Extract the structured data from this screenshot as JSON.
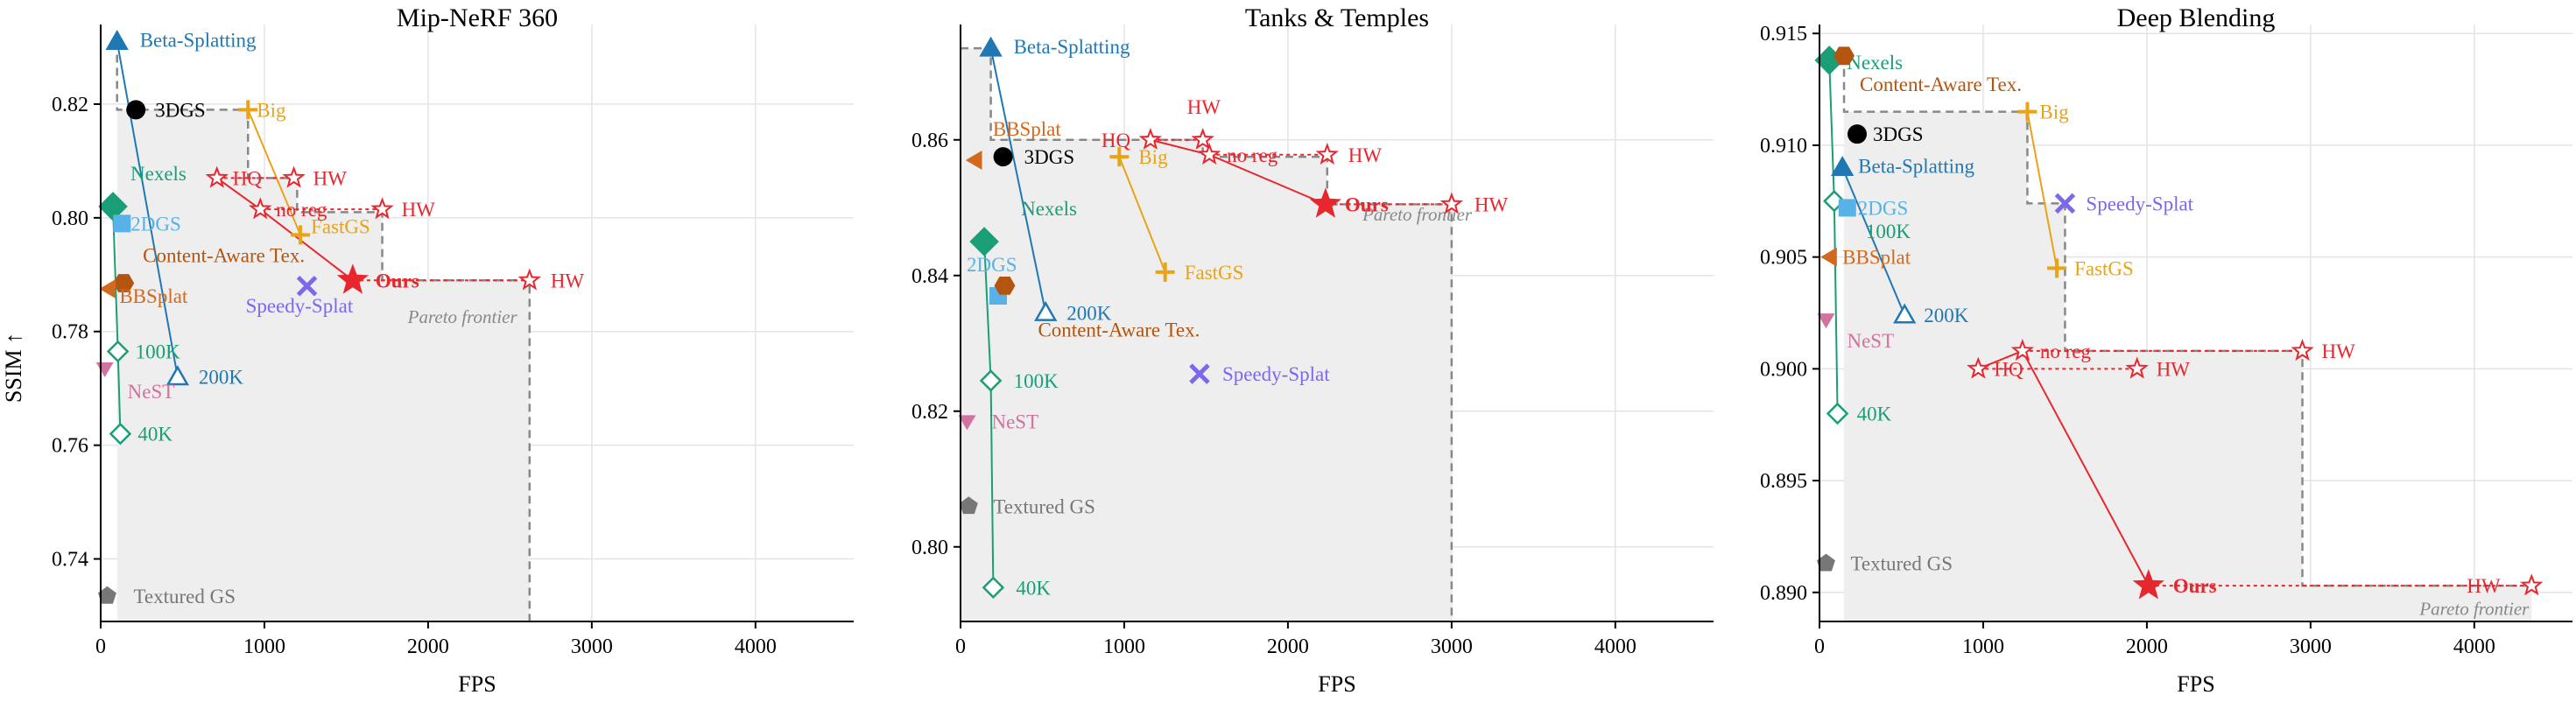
{
  "figure": {
    "ylabel": "SSIM ↑"
  },
  "colors": {
    "ours": "#e8262e",
    "hw": "#e8262e",
    "beta": "#1f78b4",
    "three_dgs": "#000000",
    "big": "#e8a317",
    "fastgs": "#e8a317",
    "nexels": "#1a9e77",
    "twodgs": "#58b2e8",
    "cat": "#b3550e",
    "bbsplat": "#d2691e",
    "speedy": "#7b68ee",
    "nest": "#d2729e",
    "textured": "#777777",
    "frontier": "#888888",
    "shade": "#eeeeee"
  },
  "chart_data": [
    {
      "type": "scatter",
      "title": "Mip-NeRF 360",
      "xlabel": "FPS",
      "ylabel": "SSIM ↑",
      "xlim": [
        0,
        4600
      ],
      "ylim": [
        0.729,
        0.834
      ],
      "xticks": [
        "0",
        "1000",
        "2000",
        "3000",
        "4000"
      ],
      "yticks": [
        "0.74",
        "0.76",
        "0.78",
        "0.80",
        "0.82"
      ],
      "ytick_values": [
        0.74,
        0.76,
        0.78,
        0.8,
        0.82
      ],
      "grid": true,
      "frontier_label": "Pareto frontier",
      "frontier": [
        [
          100,
          0.831
        ],
        [
          100,
          0.819
        ],
        [
          900,
          0.819
        ],
        [
          900,
          0.807
        ],
        [
          1200,
          0.807
        ],
        [
          1200,
          0.801
        ],
        [
          1720,
          0.801
        ],
        [
          1720,
          0.789
        ],
        [
          2620,
          0.789
        ],
        [
          2620,
          0.729
        ]
      ],
      "series": [
        {
          "name": "Beta-Splatting",
          "marker": "tri-up",
          "color": "beta",
          "points": [
            [
              100,
              0.831
            ],
            [
              470,
              0.772
            ]
          ],
          "pt_labels": [
            "Beta-Splatting",
            "200K"
          ]
        },
        {
          "name": "3DGS",
          "marker": "circle",
          "color": "three_dgs",
          "points": [
            [
              215,
              0.819
            ]
          ],
          "pt_labels": [
            "3DGS"
          ]
        },
        {
          "name": "Big",
          "marker": "plus",
          "color": "big",
          "points": [
            [
              900,
              0.819
            ],
            [
              1220,
              0.797
            ]
          ],
          "pt_labels": [
            "Big",
            "FastGS"
          ]
        },
        {
          "name": "HQ",
          "marker": "star-open",
          "color": "hw",
          "points": [
            [
              710,
              0.807
            ],
            [
              1180,
              0.807
            ]
          ],
          "pt_labels": [
            "HQ",
            "HW"
          ]
        },
        {
          "name": "no reg",
          "marker": "star-open",
          "color": "hw",
          "points": [
            [
              975,
              0.8015
            ],
            [
              1720,
              0.8015
            ]
          ],
          "pt_labels": [
            "no reg",
            "HW"
          ]
        },
        {
          "name": "Ours",
          "marker": "star",
          "color": "ours",
          "points": [
            [
              1540,
              0.789
            ],
            [
              2620,
              0.789
            ]
          ],
          "pt_labels": [
            "Ours",
            "HW"
          ]
        },
        {
          "name": "Nexels",
          "marker": "diamond",
          "color": "nexels",
          "points": [
            [
              75,
              0.802
            ],
            [
              105,
              0.7765
            ],
            [
              120,
              0.762
            ]
          ],
          "pt_labels": [
            "Nexels",
            "100K",
            "40K"
          ]
        },
        {
          "name": "2DGS",
          "marker": "square",
          "color": "twodgs",
          "points": [
            [
              130,
              0.799
            ]
          ],
          "pt_labels": [
            "2DGS"
          ]
        },
        {
          "name": "Content-Aware Tex.",
          "marker": "hexagon",
          "color": "cat",
          "points": [
            [
              140,
              0.7885
            ]
          ],
          "pt_labels": [
            "Content-Aware Tex."
          ]
        },
        {
          "name": "BBSplat",
          "marker": "tri-left",
          "color": "bbsplat",
          "points": [
            [
              50,
              0.7875
            ]
          ],
          "pt_labels": [
            "BBSplat"
          ]
        },
        {
          "name": "Speedy-Splat",
          "marker": "x",
          "color": "speedy",
          "points": [
            [
              1260,
              0.788
            ]
          ],
          "pt_labels": [
            "Speedy-Splat"
          ]
        },
        {
          "name": "NeST",
          "marker": "tri-down",
          "color": "nest",
          "points": [
            [
              25,
              0.7735
            ]
          ],
          "pt_labels": [
            "NeST"
          ]
        },
        {
          "name": "Textured GS",
          "marker": "pentagon",
          "color": "textured",
          "points": [
            [
              40,
              0.7335
            ]
          ],
          "pt_labels": [
            "Textured GS"
          ]
        }
      ]
    },
    {
      "type": "scatter",
      "title": "Tanks & Temples",
      "xlabel": "FPS",
      "ylabel": "",
      "xlim": [
        0,
        4600
      ],
      "ylim": [
        0.789,
        0.877
      ],
      "xticks": [
        "0",
        "1000",
        "2000",
        "3000",
        "4000"
      ],
      "yticks": [
        "0.80",
        "0.82",
        "0.84",
        "0.86"
      ],
      "ytick_values": [
        0.8,
        0.82,
        0.84,
        0.86
      ],
      "grid": true,
      "frontier_label": "Pareto frontier",
      "frontier": [
        [
          0,
          0.8735
        ],
        [
          185,
          0.8735
        ],
        [
          185,
          0.86
        ],
        [
          1480,
          0.86
        ],
        [
          1480,
          0.8575
        ],
        [
          2240,
          0.8575
        ],
        [
          2240,
          0.8505
        ],
        [
          3000,
          0.8505
        ],
        [
          3000,
          0.789
        ]
      ],
      "series": [
        {
          "name": "Beta-Splatting",
          "marker": "tri-up",
          "color": "beta",
          "points": [
            [
              185,
              0.8735
            ],
            [
              520,
              0.8345
            ]
          ],
          "pt_labels": [
            "Beta-Splatting",
            "200K"
          ]
        },
        {
          "name": "3DGS",
          "marker": "circle",
          "color": "three_dgs",
          "points": [
            [
              260,
              0.8575
            ]
          ],
          "pt_labels": [
            "3DGS"
          ]
        },
        {
          "name": "Big",
          "marker": "plus",
          "color": "big",
          "points": [
            [
              970,
              0.8575
            ],
            [
              1250,
              0.8405
            ]
          ],
          "pt_labels": [
            "Big",
            "FastGS"
          ]
        },
        {
          "name": "HQ",
          "marker": "star-open",
          "color": "hw",
          "points": [
            [
              1160,
              0.86
            ],
            [
              1480,
              0.86
            ]
          ],
          "pt_labels": [
            "HQ",
            "HW"
          ]
        },
        {
          "name": "no reg",
          "marker": "star-open",
          "color": "hw",
          "points": [
            [
              1520,
              0.8578
            ],
            [
              2240,
              0.8578
            ]
          ],
          "pt_labels": [
            "no reg",
            "HW"
          ]
        },
        {
          "name": "Ours",
          "marker": "star",
          "color": "ours",
          "points": [
            [
              2230,
              0.8505
            ],
            [
              3000,
              0.8505
            ]
          ],
          "pt_labels": [
            "Ours",
            "HW"
          ]
        },
        {
          "name": "BBSplat",
          "marker": "tri-left",
          "color": "bbsplat",
          "points": [
            [
              90,
              0.857
            ]
          ],
          "pt_labels": [
            "BBSplat"
          ]
        },
        {
          "name": "Nexels",
          "marker": "diamond",
          "color": "nexels",
          "points": [
            [
              145,
              0.845
            ],
            [
              185,
              0.8245
            ],
            [
              200,
              0.794
            ]
          ],
          "pt_labels": [
            "Nexels",
            "100K",
            "40K"
          ]
        },
        {
          "name": "2DGS",
          "marker": "square",
          "color": "twodgs",
          "points": [
            [
              230,
              0.837
            ]
          ],
          "pt_labels": [
            "2DGS"
          ]
        },
        {
          "name": "Content-Aware Tex.",
          "marker": "hexagon",
          "color": "cat",
          "points": [
            [
              270,
              0.8385
            ]
          ],
          "pt_labels": [
            "Content-Aware Tex."
          ]
        },
        {
          "name": "Speedy-Splat",
          "marker": "x",
          "color": "speedy",
          "points": [
            [
              1460,
              0.8255
            ]
          ],
          "pt_labels": [
            "Speedy-Splat"
          ]
        },
        {
          "name": "NeST",
          "marker": "tri-down",
          "color": "nest",
          "points": [
            [
              40,
              0.8185
            ]
          ],
          "pt_labels": [
            "NeST"
          ]
        },
        {
          "name": "Textured GS",
          "marker": "pentagon",
          "color": "textured",
          "points": [
            [
              50,
              0.806
            ]
          ],
          "pt_labels": [
            "Textured GS"
          ]
        }
      ]
    },
    {
      "type": "scatter",
      "title": "Deep Blending",
      "xlabel": "FPS",
      "ylabel": "",
      "xlim": [
        0,
        4600
      ],
      "ylim": [
        0.8887,
        0.9154
      ],
      "xticks": [
        "0",
        "1000",
        "2000",
        "3000",
        "4000"
      ],
      "yticks": [
        "0.890",
        "0.895",
        "0.900",
        "0.905",
        "0.910",
        "0.915"
      ],
      "ytick_values": [
        0.89,
        0.895,
        0.9,
        0.905,
        0.91,
        0.915
      ],
      "grid": true,
      "frontier_label": "Pareto frontier",
      "frontier": [
        [
          150,
          0.914
        ],
        [
          150,
          0.9115
        ],
        [
          1270,
          0.9115
        ],
        [
          1270,
          0.9074
        ],
        [
          1500,
          0.9074
        ],
        [
          1500,
          0.9008
        ],
        [
          2950,
          0.9008
        ],
        [
          2950,
          0.8903
        ],
        [
          4350,
          0.8903
        ]
      ],
      "series": [
        {
          "name": "Nexels",
          "marker": "diamond",
          "color": "nexels",
          "points": [
            [
              60,
              0.9138
            ],
            [
              90,
              0.9075
            ],
            [
              110,
              0.898
            ]
          ],
          "pt_labels": [
            "Nexels",
            "100K",
            "40K"
          ]
        },
        {
          "name": "Content-Aware Tex.",
          "marker": "hexagon",
          "color": "cat",
          "points": [
            [
              150,
              0.914
            ]
          ],
          "pt_labels": [
            "Content-Aware Tex."
          ]
        },
        {
          "name": "Big",
          "marker": "plus",
          "color": "big",
          "points": [
            [
              1270,
              0.9115
            ],
            [
              1450,
              0.9045
            ]
          ],
          "pt_labels": [
            "Big",
            "FastGS"
          ]
        },
        {
          "name": "3DGS",
          "marker": "circle",
          "color": "three_dgs",
          "points": [
            [
              230,
              0.9105
            ]
          ],
          "pt_labels": [
            "3DGS"
          ]
        },
        {
          "name": "Beta-Splatting",
          "marker": "tri-up",
          "color": "beta",
          "points": [
            [
              140,
              0.909
            ],
            [
              520,
              0.9024
            ]
          ],
          "pt_labels": [
            "Beta-Splatting",
            "200K"
          ]
        },
        {
          "name": "Speedy-Splat",
          "marker": "x",
          "color": "speedy",
          "points": [
            [
              1500,
              0.9074
            ]
          ],
          "pt_labels": [
            "Speedy-Splat"
          ]
        },
        {
          "name": "2DGS",
          "marker": "square",
          "color": "twodgs",
          "points": [
            [
              170,
              0.9072
            ]
          ],
          "pt_labels": [
            "2DGS"
          ]
        },
        {
          "name": "BBSplat",
          "marker": "tri-left",
          "color": "bbsplat",
          "points": [
            [
              65,
              0.905
            ]
          ],
          "pt_labels": [
            "BBSplat"
          ]
        },
        {
          "name": "NeST",
          "marker": "tri-down",
          "color": "nest",
          "points": [
            [
              40,
              0.9022
            ]
          ],
          "pt_labels": [
            "NeST"
          ]
        },
        {
          "name": "no reg",
          "marker": "star-open",
          "color": "hw",
          "points": [
            [
              1240,
              0.9008
            ],
            [
              2950,
              0.9008
            ]
          ],
          "pt_labels": [
            "no reg",
            "HW"
          ]
        },
        {
          "name": "HQ",
          "marker": "star-open",
          "color": "hw",
          "points": [
            [
              970,
              0.9
            ],
            [
              1940,
              0.9
            ]
          ],
          "pt_labels": [
            "HQ",
            "HW"
          ]
        },
        {
          "name": "Ours",
          "marker": "star",
          "color": "ours",
          "points": [
            [
              2010,
              0.8903
            ],
            [
              4350,
              0.8903
            ]
          ],
          "pt_labels": [
            "Ours",
            "HW"
          ]
        },
        {
          "name": "Textured GS",
          "marker": "pentagon",
          "color": "textured",
          "points": [
            [
              40,
              0.8913
            ]
          ],
          "pt_labels": [
            "Textured GS"
          ]
        }
      ]
    }
  ]
}
